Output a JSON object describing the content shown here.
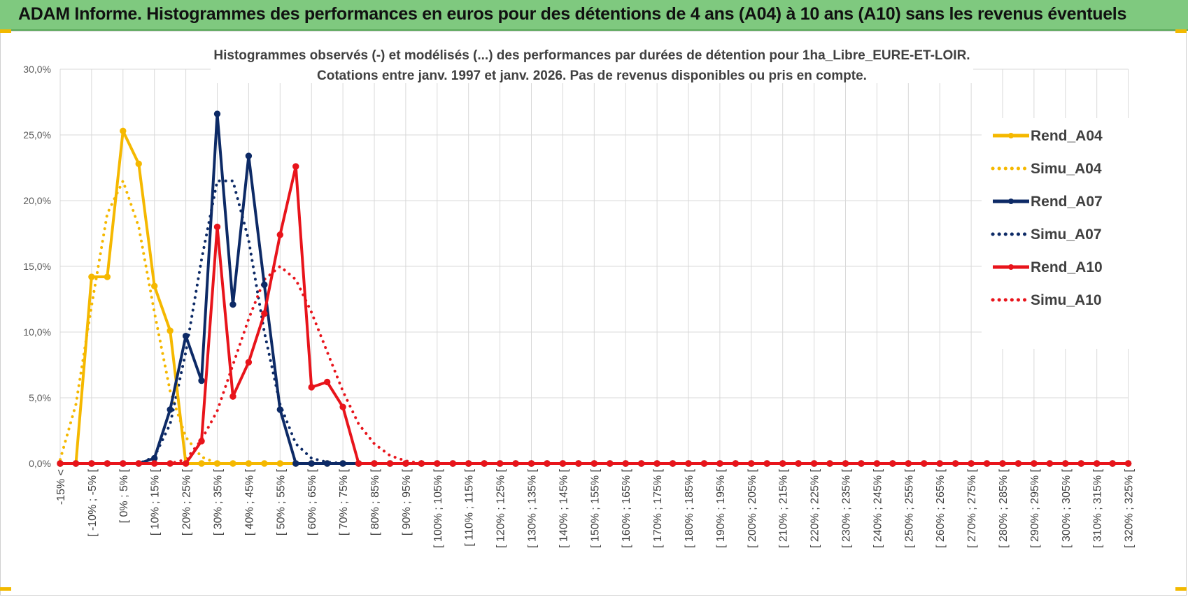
{
  "banner": {
    "title": "ADAM Informe. Histogrammes des performances en euros pour des détentions de 4 ans (A04) à 10 ans (A10) sans les revenus éventuels"
  },
  "chart_data": {
    "type": "line",
    "title_line1": "Histogrammes observés (-) et modélisés (...) des performances par durées de détention pour 1ha_Libre_EURE-ET-LOIR.",
    "title_line2": "Cotations entre janv. 1997 et janv. 2026. Pas de revenus disponibles ou pris en compte.",
    "ylim": [
      0,
      30
    ],
    "yticks": [
      "0,0%",
      "5,0%",
      "10,0%",
      "15,0%",
      "20,0%",
      "25,0%",
      "30,0%"
    ],
    "grid": true,
    "legend_position": "right",
    "x_labels": [
      "-15% <",
      "[ -10% ; -5% [",
      "[ 0% ; 5% [",
      "[ 10% ; 15% [",
      "[ 20% ; 25% [",
      "[ 30% ; 35% [",
      "[ 40% ; 45% [",
      "[ 50% ; 55% [",
      "[ 60% ; 65% [",
      "[ 70% ; 75% [",
      "[ 80% ; 85% [",
      "[ 90% ; 95% [",
      "[ 100% ; 105% [",
      "[ 110% ; 115% [",
      "[ 120% ; 125% [",
      "[ 130% ; 135% [",
      "[ 140% ; 145% [",
      "[ 150% ; 155% [",
      "[ 160% ; 165% [",
      "[ 170% ; 175% [",
      "[ 180% ; 185% [",
      "[ 190% ; 195% [",
      "[ 200% ; 205% [",
      "[ 210% ; 215% [",
      "[ 220% ; 225% [",
      "[ 230% ; 235% [",
      "[ 240% ; 245% [",
      "[ 250% ; 255% [",
      "[ 260% ; 265% [",
      "[ 270% ; 275% [",
      "[ 280% ; 285% [",
      "[ 290% ; 295% [",
      "[ 300% ; 305% [",
      "[ 310% ; 315% [",
      "[ 320% ; 325% ["
    ],
    "series": [
      {
        "name": "Rend_A04",
        "color": "#f5b800",
        "style": "solid",
        "markers": true,
        "values": [
          0,
          0,
          14.2,
          14.2,
          25.3,
          22.8,
          13.5,
          10.1,
          0,
          0,
          0,
          0
        ]
      },
      {
        "name": "Simu_A04",
        "color": "#f5b800",
        "style": "dotted",
        "markers": false,
        "values": [
          0.3,
          4.5,
          12.0,
          19.0,
          21.5,
          18.0,
          11.5,
          5.5,
          2.0,
          0.5,
          0,
          0
        ]
      },
      {
        "name": "Rend_A07",
        "color": "#0d2a66",
        "style": "solid",
        "markers": true,
        "values": [
          0,
          0,
          0,
          0,
          0,
          0,
          0.4,
          4.1,
          9.7,
          6.3,
          26.6,
          12.1,
          23.4,
          13.6,
          4.1,
          0,
          0,
          0,
          0
        ]
      },
      {
        "name": "Simu_A07",
        "color": "#0d2a66",
        "style": "dotted",
        "markers": false,
        "values": [
          0,
          0,
          0,
          0,
          0,
          0,
          0.5,
          3.0,
          8.5,
          15.5,
          21.5,
          21.5,
          17.0,
          10.0,
          4.5,
          1.5,
          0.4,
          0.1,
          0
        ]
      },
      {
        "name": "Rend_A10",
        "color": "#e8141b",
        "style": "solid",
        "markers": true,
        "values": [
          0,
          0,
          0,
          0,
          0,
          0,
          0,
          0,
          0,
          1.7,
          18.0,
          5.1,
          7.7,
          11.4,
          17.4,
          22.6,
          5.8,
          6.2,
          4.3,
          0
        ]
      },
      {
        "name": "Simu_A10",
        "color": "#e8141b",
        "style": "dotted",
        "markers": false,
        "values": [
          0,
          0,
          0,
          0,
          0,
          0,
          0,
          0,
          0.3,
          1.8,
          4.0,
          7.5,
          11.0,
          14.0,
          15.0,
          14.0,
          11.5,
          8.5,
          5.5,
          3.0,
          1.5,
          0.6,
          0.2,
          0
        ]
      }
    ]
  }
}
